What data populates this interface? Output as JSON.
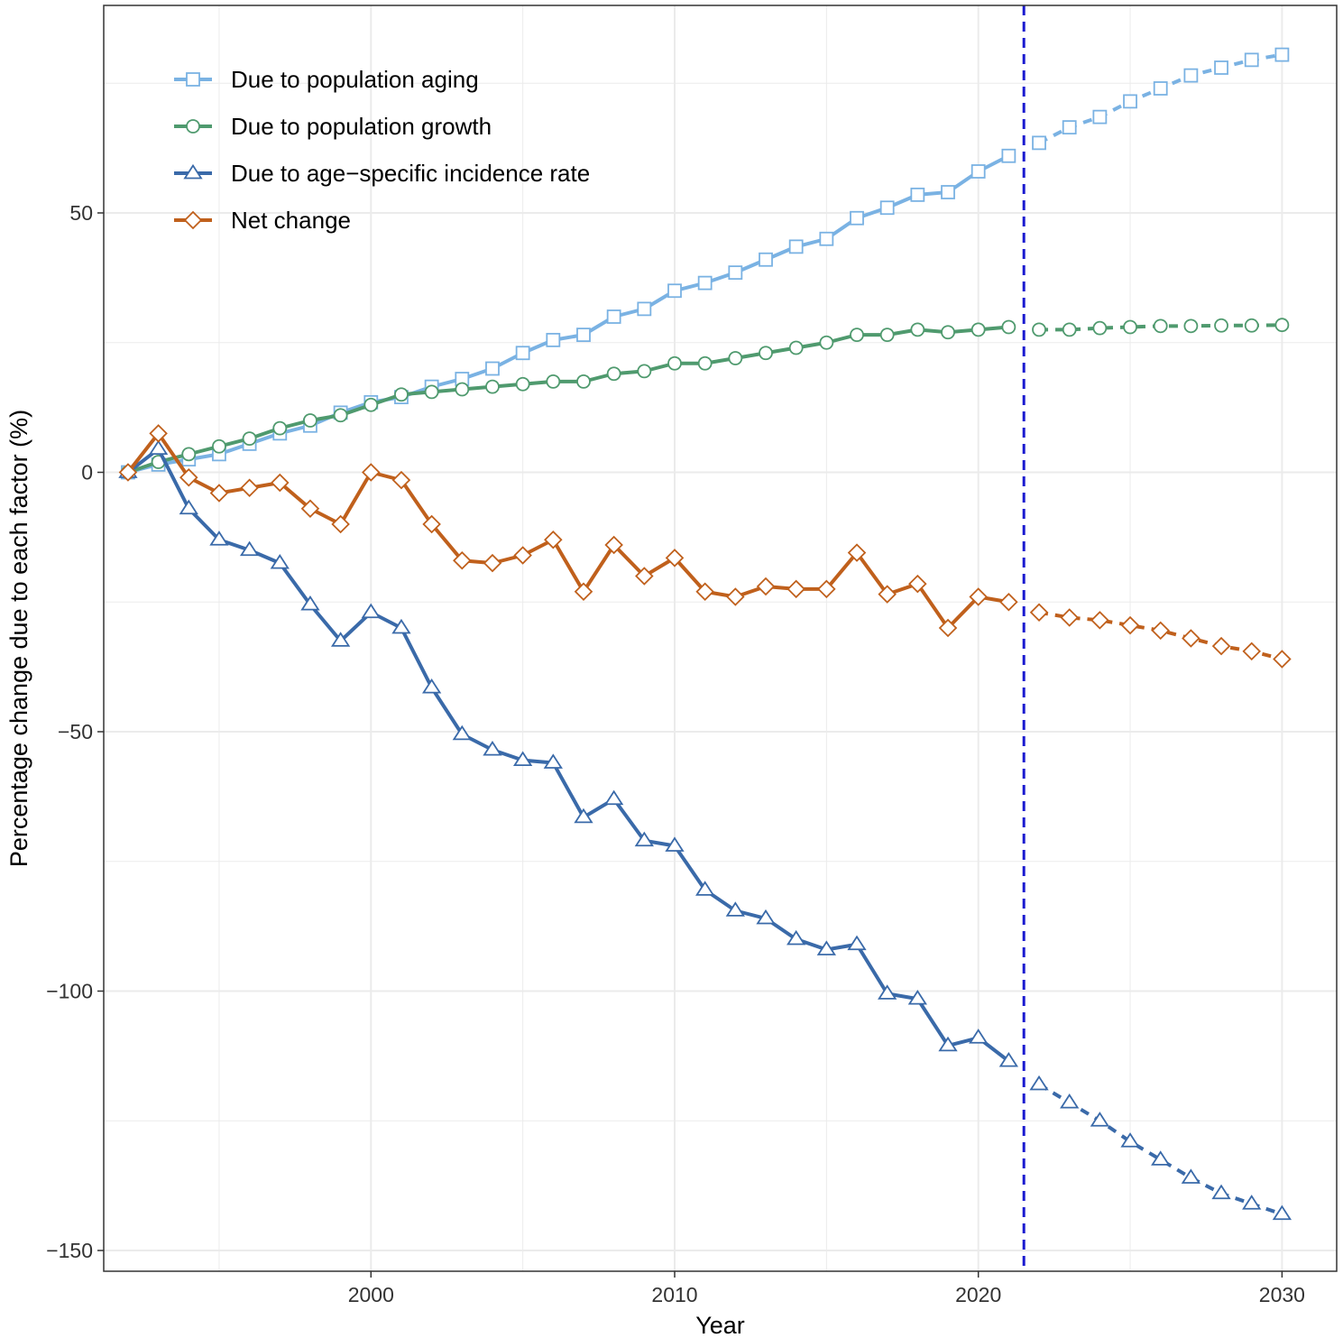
{
  "chart_data": {
    "type": "line",
    "title": "",
    "xlabel": "Year",
    "ylabel": "Percentage change due to each factor (%)",
    "xlim": [
      1991.2,
      2031.8
    ],
    "ylim": [
      -154,
      90
    ],
    "x_ticks": [
      2000,
      2010,
      2020,
      2030
    ],
    "y_ticks": [
      50,
      0,
      -50,
      -100,
      -150
    ],
    "y_tick_labels": [
      "50",
      "0",
      "−50",
      "−100",
      "−150"
    ],
    "grid": true,
    "legend_position": "top-left",
    "forecast_start": 2021.5,
    "observed_years": [
      1992,
      1993,
      1994,
      1995,
      1996,
      1997,
      1998,
      1999,
      2000,
      2001,
      2002,
      2003,
      2004,
      2005,
      2006,
      2007,
      2008,
      2009,
      2010,
      2011,
      2012,
      2013,
      2014,
      2015,
      2016,
      2017,
      2018,
      2019,
      2020,
      2021
    ],
    "projected_years": [
      2022,
      2023,
      2024,
      2025,
      2026,
      2027,
      2028,
      2029,
      2030
    ],
    "series": [
      {
        "name": "Due to population aging",
        "color": "#7ab2e3",
        "marker": "square",
        "observed": [
          0,
          1.5,
          2.5,
          3.5,
          5.5,
          7.5,
          9,
          11.5,
          13.5,
          14.5,
          16.5,
          18,
          20,
          23,
          25.5,
          26.5,
          30,
          31.5,
          35,
          36.5,
          38.5,
          41,
          43.5,
          45,
          49,
          51,
          53.5,
          54,
          58,
          61
        ],
        "projected": [
          63.5,
          66.5,
          68.5,
          71.5,
          74,
          76.5,
          78,
          79.5,
          80.5
        ]
      },
      {
        "name": "Due to population growth",
        "color": "#4f9a6e",
        "marker": "circle",
        "observed": [
          0,
          2,
          3.5,
          5,
          6.5,
          8.5,
          10,
          11,
          13,
          15,
          15.5,
          16,
          16.5,
          17,
          17.5,
          17.5,
          19,
          19.5,
          21,
          21,
          22,
          23,
          24,
          25,
          26.5,
          26.5,
          27.5,
          27,
          27.5,
          28
        ],
        "projected": [
          27.5,
          27.5,
          27.8,
          28,
          28.2,
          28.2,
          28.3,
          28.3,
          28.4
        ]
      },
      {
        "name": "Due to age−specific incidence rate",
        "color": "#3a6aa9",
        "marker": "triangle",
        "observed": [
          0,
          4.5,
          -7,
          -13,
          -15,
          -17.5,
          -25.5,
          -32.5,
          -27,
          -30,
          -41.5,
          -50.5,
          -53.5,
          -55.5,
          -56,
          -66.5,
          -63,
          -71,
          -72,
          -80.5,
          -84.5,
          -86,
          -90,
          -92,
          -91,
          -100.5,
          -101.5,
          -110.5,
          -109,
          -113.5
        ],
        "projected": [
          -118,
          -121.5,
          -125,
          -129,
          -132.5,
          -136,
          -139,
          -141,
          -143
        ]
      },
      {
        "name": "Net change",
        "color": "#c0601c",
        "marker": "diamond",
        "observed": [
          0,
          7.5,
          -1,
          -4,
          -3,
          -2,
          -7,
          -10,
          0,
          -1.5,
          -10,
          -17,
          -17.5,
          -16,
          -13,
          -23,
          -14,
          -20,
          -16.5,
          -23,
          -24,
          -22,
          -22.5,
          -22.5,
          -15.5,
          -23.5,
          -21.5,
          -30,
          -24,
          -25
        ],
        "projected": [
          -27,
          -28,
          -28.5,
          -29.5,
          -30.5,
          -32,
          -33.5,
          -34.5,
          -36
        ]
      }
    ]
  }
}
